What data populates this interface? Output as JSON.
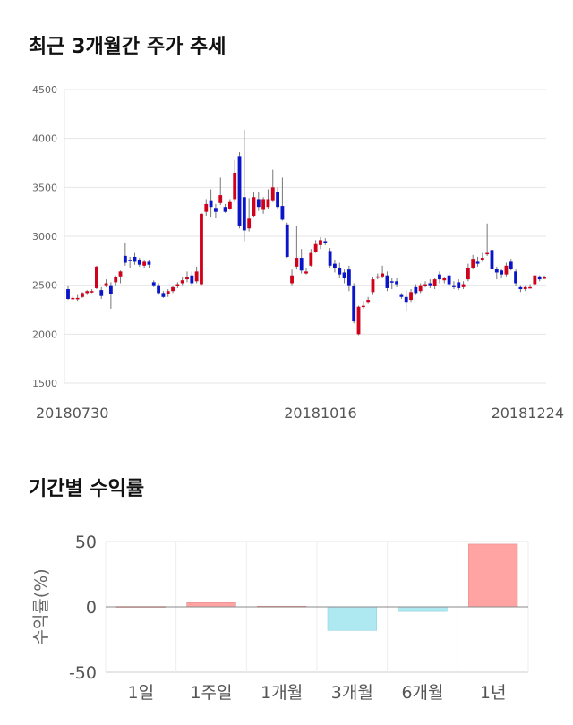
{
  "sections": {
    "price_title": "최근 3개월간 주가 추세",
    "returns_title": "기간별 수익률"
  },
  "chart_data": [
    {
      "type": "candlestick",
      "title": "최근 3개월간 주가 추세",
      "ylim": [
        1500,
        4500
      ],
      "yticks": [
        1500,
        2000,
        2500,
        3000,
        3500,
        4000,
        4500
      ],
      "xticks": [
        {
          "label": "20180730",
          "index": 0
        },
        {
          "label": "20181016",
          "index": 53
        },
        {
          "label": "20181224",
          "index": 100
        }
      ],
      "grid": true,
      "up_color": "#d0021b",
      "down_color": "#0a14c8",
      "candles": [
        [
          2460,
          2360,
          2490,
          2350
        ],
        [
          2370,
          2370,
          2390,
          2350
        ],
        [
          2370,
          2370,
          2400,
          2340
        ],
        [
          2380,
          2420,
          2430,
          2370
        ],
        [
          2420,
          2440,
          2450,
          2400
        ],
        [
          2440,
          2440,
          2460,
          2420
        ],
        [
          2470,
          2690,
          2700,
          2460
        ],
        [
          2450,
          2390,
          2480,
          2360
        ],
        [
          2500,
          2520,
          2560,
          2480
        ],
        [
          2500,
          2410,
          2530,
          2260
        ],
        [
          2530,
          2580,
          2600,
          2500
        ],
        [
          2590,
          2640,
          2650,
          2520
        ],
        [
          2800,
          2730,
          2930,
          2700
        ],
        [
          2760,
          2750,
          2790,
          2680
        ],
        [
          2790,
          2740,
          2830,
          2710
        ],
        [
          2760,
          2710,
          2780,
          2690
        ],
        [
          2700,
          2740,
          2760,
          2680
        ],
        [
          2740,
          2710,
          2760,
          2680
        ],
        [
          2530,
          2500,
          2550,
          2480
        ],
        [
          2500,
          2420,
          2520,
          2400
        ],
        [
          2420,
          2380,
          2440,
          2370
        ],
        [
          2410,
          2440,
          2460,
          2380
        ],
        [
          2440,
          2480,
          2490,
          2420
        ],
        [
          2490,
          2510,
          2530,
          2470
        ],
        [
          2520,
          2550,
          2580,
          2500
        ],
        [
          2560,
          2580,
          2640,
          2530
        ],
        [
          2600,
          2520,
          2640,
          2490
        ],
        [
          2540,
          2640,
          2690,
          2520
        ],
        [
          2510,
          3230,
          3240,
          2500
        ],
        [
          3250,
          3330,
          3380,
          3210
        ],
        [
          3360,
          3300,
          3480,
          3200
        ],
        [
          3290,
          3250,
          3330,
          3190
        ],
        [
          3340,
          3420,
          3600,
          3320
        ],
        [
          3300,
          3250,
          3330,
          3240
        ],
        [
          3280,
          3350,
          3380,
          3270
        ],
        [
          3380,
          3650,
          3780,
          3350
        ],
        [
          3820,
          3110,
          3860,
          3080
        ],
        [
          3400,
          3060,
          4090,
          2950
        ],
        [
          3080,
          3180,
          3390,
          3050
        ],
        [
          3210,
          3400,
          3450,
          3200
        ],
        [
          3380,
          3300,
          3450,
          3260
        ],
        [
          3270,
          3380,
          3400,
          3230
        ],
        [
          3300,
          3380,
          3480,
          3280
        ],
        [
          3360,
          3500,
          3680,
          3350
        ],
        [
          3450,
          3300,
          3500,
          3280
        ],
        [
          3310,
          3170,
          3600,
          3160
        ],
        [
          3120,
          2790,
          3140,
          2780
        ],
        [
          2520,
          2600,
          2660,
          2500
        ],
        [
          2690,
          2780,
          3110,
          2660
        ],
        [
          2780,
          2650,
          2870,
          2620
        ],
        [
          2620,
          2640,
          2680,
          2610
        ],
        [
          2700,
          2830,
          2870,
          2690
        ],
        [
          2840,
          2920,
          2960,
          2830
        ],
        [
          2910,
          2960,
          2990,
          2870
        ],
        [
          2950,
          2930,
          2980,
          2910
        ],
        [
          2850,
          2700,
          2880,
          2680
        ],
        [
          2720,
          2680,
          2760,
          2630
        ],
        [
          2680,
          2610,
          2730,
          2570
        ],
        [
          2630,
          2570,
          2660,
          2520
        ],
        [
          2660,
          2500,
          2700,
          2440
        ],
        [
          2490,
          2130,
          2520,
          2110
        ],
        [
          2000,
          2280,
          2290,
          1990
        ],
        [
          2280,
          2290,
          2340,
          2260
        ],
        [
          2330,
          2350,
          2380,
          2310
        ],
        [
          2430,
          2560,
          2580,
          2400
        ],
        [
          2580,
          2590,
          2620,
          2560
        ],
        [
          2590,
          2620,
          2700,
          2570
        ],
        [
          2600,
          2470,
          2640,
          2440
        ],
        [
          2540,
          2530,
          2570,
          2460
        ],
        [
          2540,
          2510,
          2570,
          2480
        ],
        [
          2400,
          2380,
          2420,
          2360
        ],
        [
          2380,
          2330,
          2450,
          2240
        ],
        [
          2350,
          2430,
          2460,
          2330
        ],
        [
          2480,
          2420,
          2510,
          2400
        ],
        [
          2440,
          2500,
          2520,
          2420
        ],
        [
          2490,
          2510,
          2540,
          2480
        ],
        [
          2520,
          2500,
          2560,
          2470
        ],
        [
          2490,
          2560,
          2570,
          2460
        ],
        [
          2610,
          2560,
          2640,
          2520
        ],
        [
          2550,
          2570,
          2580,
          2520
        ],
        [
          2600,
          2510,
          2640,
          2480
        ],
        [
          2500,
          2480,
          2540,
          2460
        ],
        [
          2530,
          2470,
          2560,
          2450
        ],
        [
          2480,
          2510,
          2540,
          2460
        ],
        [
          2560,
          2680,
          2720,
          2540
        ],
        [
          2680,
          2770,
          2810,
          2660
        ],
        [
          2740,
          2720,
          2790,
          2690
        ],
        [
          2760,
          2780,
          2830,
          2740
        ],
        [
          2830,
          2830,
          3130,
          2800
        ],
        [
          2860,
          2670,
          2880,
          2660
        ],
        [
          2670,
          2630,
          2690,
          2560
        ],
        [
          2650,
          2610,
          2670,
          2570
        ],
        [
          2610,
          2700,
          2730,
          2590
        ],
        [
          2740,
          2670,
          2770,
          2650
        ],
        [
          2640,
          2520,
          2660,
          2490
        ],
        [
          2480,
          2460,
          2500,
          2430
        ],
        [
          2460,
          2480,
          2500,
          2440
        ],
        [
          2480,
          2480,
          2510,
          2470
        ],
        [
          2510,
          2600,
          2610,
          2490
        ],
        [
          2590,
          2560,
          2600,
          2540
        ],
        [
          2570,
          2580,
          2600,
          2560
        ]
      ]
    },
    {
      "type": "bar",
      "title": "기간별 수익률",
      "ylabel": "수익률(%)",
      "ylim": [
        -50,
        50
      ],
      "yticks": [
        50,
        0,
        -50
      ],
      "categories": [
        "1일",
        "1주일",
        "1개월",
        "3개월",
        "6개월",
        "1년"
      ],
      "values": [
        0.3,
        3.2,
        0.5,
        -18,
        -3.5,
        48
      ],
      "positive_color": "#ffa3a3",
      "negative_color": "#aee8f0",
      "grid": true
    }
  ]
}
